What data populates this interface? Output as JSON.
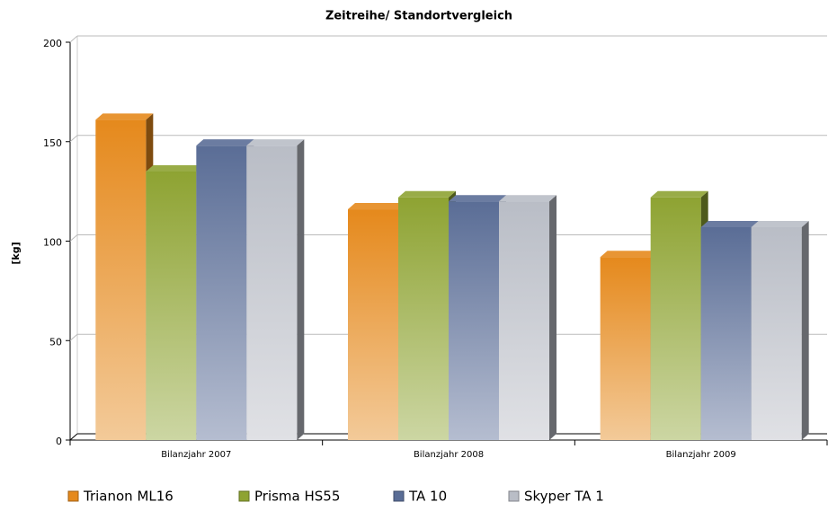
{
  "chart_data": {
    "type": "bar3d",
    "title": "Zeitreihe/ Standortvergleich",
    "y_label": "[kg]",
    "categories": [
      "Bilanzjahr 2007",
      "Bilanzjahr 2008",
      "Bilanzjahr 2009"
    ],
    "series": [
      {
        "name": "Trianon ML16",
        "color": "#e5891c",
        "values": [
          161,
          116,
          92
        ]
      },
      {
        "name": "Prisma HS55",
        "color": "#8ea332",
        "values": [
          135,
          122,
          122
        ]
      },
      {
        "name": "TA 10",
        "color": "#5a6d96",
        "values": [
          148,
          120,
          107
        ]
      },
      {
        "name": "Skyper TA 1",
        "color": "#b9bdc6",
        "values": [
          148,
          120,
          107
        ]
      }
    ],
    "ylim": [
      0,
      200
    ],
    "yticks": [
      0,
      50,
      100,
      150,
      200
    ],
    "grid": true,
    "legend": "bottom"
  }
}
